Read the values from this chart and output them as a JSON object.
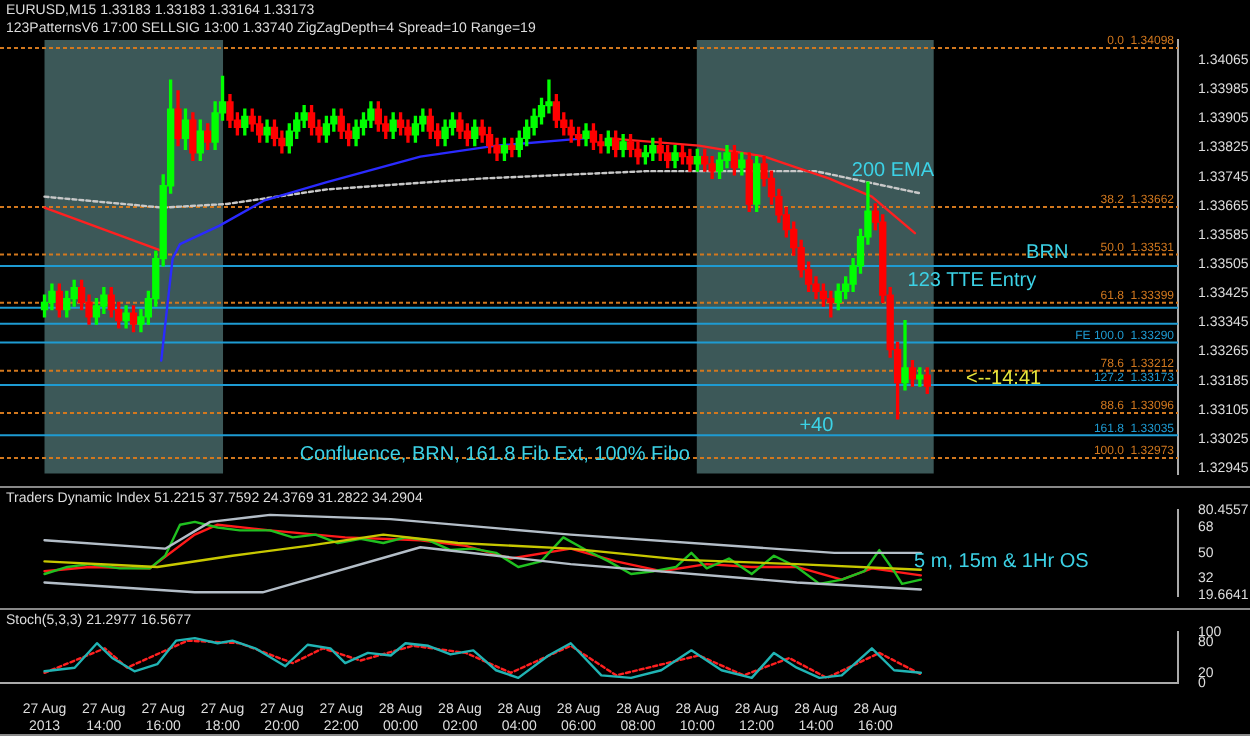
{
  "chart_data": [
    {
      "type": "candlestick",
      "title": "EURUSD,M15  1.33183 1.33183 1.33164 1.33173",
      "subtitle": "123PatternsV6  17:00  SELLSIG  13:00  1.33740  ZigZagDepth=4  Spread=10  Range=19",
      "xlim": [
        "2013-08-27T10:30",
        "2013-08-29T02:12"
      ],
      "ylim": [
        1.3293,
        1.3412
      ],
      "yticks": [
        1.32945,
        1.33025,
        1.33105,
        1.33185,
        1.33265,
        1.33345,
        1.33425,
        1.33505,
        1.33585,
        1.33665,
        1.33745,
        1.33825,
        1.33905,
        1.33985,
        1.34065
      ],
      "tick_labels": "y",
      "series": [
        {
          "color": "#00ff00",
          "x": [
            "2013-08-27T12:00",
            "2013-08-27T12:15",
            "2013-08-27T12:45",
            "2013-08-27T13:00",
            "2013-08-27T13:45",
            "2013-08-27T14:00",
            "2013-08-27T14:45",
            "2013-08-27T15:15",
            "2013-08-27T15:30",
            "2013-08-27T15:45",
            "2013-08-27T16:00",
            "2013-08-27T16:15",
            "2013-08-27T16:45",
            "2013-08-27T17:15",
            "2013-08-27T17:45",
            "2013-08-27T18:00",
            "2013-08-27T18:45",
            "2013-08-27T19:30",
            "2013-08-27T20:15",
            "2013-08-27T20:30",
            "2013-08-27T20:45",
            "2013-08-27T21:30",
            "2013-08-27T21:45",
            "2013-08-27T22:30",
            "2013-08-27T22:45",
            "2013-08-27T23:00",
            "2013-08-27T23:45",
            "2013-08-28T00:30",
            "2013-08-28T00:45",
            "2013-08-28T01:30",
            "2013-08-28T01:45",
            "2013-08-28T02:30",
            "2013-08-28T03:30",
            "2013-08-28T04:00",
            "2013-08-28T04:15",
            "2013-08-28T04:30",
            "2013-08-28T04:45",
            "2013-08-28T05:00",
            "2013-08-28T06:15",
            "2013-08-28T07:00",
            "2013-08-28T07:30",
            "2013-08-28T08:15",
            "2013-08-28T08:30",
            "2013-08-28T09:15",
            "2013-08-28T10:00",
            "2013-08-28T10:45",
            "2013-08-28T11:00",
            "2013-08-28T11:30",
            "2013-08-28T12:00",
            "2013-08-28T14:45",
            "2013-08-28T15:00",
            "2013-08-28T15:15",
            "2013-08-28T15:30",
            "2013-08-28T15:45",
            "2013-08-28T17:00",
            "2013-08-28T17:30"
          ],
          "ohlc": [
            [
              1.3338,
              1.3342,
              1.3336,
              1.334
            ],
            [
              1.334,
              1.3345,
              1.3338,
              1.3343
            ],
            [
              1.3338,
              1.3343,
              1.3336,
              1.3341
            ],
            [
              1.3341,
              1.3346,
              1.3339,
              1.3344
            ],
            [
              1.3336,
              1.3341,
              1.3334,
              1.3339
            ],
            [
              1.3339,
              1.3344,
              1.3337,
              1.3342
            ],
            [
              1.3335,
              1.3339,
              1.3333,
              1.3337
            ],
            [
              1.3334,
              1.3338,
              1.3332,
              1.3336
            ],
            [
              1.3336,
              1.3343,
              1.3334,
              1.3341
            ],
            [
              1.3341,
              1.3354,
              1.3339,
              1.3352
            ],
            [
              1.3352,
              1.3375,
              1.335,
              1.3372
            ],
            [
              1.3372,
              1.3401,
              1.337,
              1.3393
            ],
            [
              1.3385,
              1.3393,
              1.3382,
              1.339
            ],
            [
              1.3381,
              1.339,
              1.3379,
              1.3387
            ],
            [
              1.3384,
              1.3395,
              1.3382,
              1.3392
            ],
            [
              1.3392,
              1.3402,
              1.339,
              1.3395
            ],
            [
              1.3388,
              1.3393,
              1.3386,
              1.3391
            ],
            [
              1.3386,
              1.339,
              1.3384,
              1.3388
            ],
            [
              1.3383,
              1.3389,
              1.3381,
              1.3387
            ],
            [
              1.3387,
              1.3392,
              1.3385,
              1.339
            ],
            [
              1.339,
              1.3394,
              1.3388,
              1.3392
            ],
            [
              1.3386,
              1.3391,
              1.3384,
              1.3389
            ],
            [
              1.3389,
              1.3393,
              1.3387,
              1.3391
            ],
            [
              1.3385,
              1.339,
              1.3383,
              1.3388
            ],
            [
              1.3388,
              1.3392,
              1.3386,
              1.339
            ],
            [
              1.339,
              1.3395,
              1.3388,
              1.3393
            ],
            [
              1.3387,
              1.3392,
              1.3385,
              1.339
            ],
            [
              1.3386,
              1.3391,
              1.3384,
              1.3389
            ],
            [
              1.3389,
              1.3393,
              1.3387,
              1.3391
            ],
            [
              1.3385,
              1.339,
              1.3383,
              1.3388
            ],
            [
              1.3388,
              1.3392,
              1.3386,
              1.339
            ],
            [
              1.3385,
              1.339,
              1.3383,
              1.3388
            ],
            [
              1.3381,
              1.3385,
              1.3379,
              1.3383
            ],
            [
              1.3382,
              1.3387,
              1.338,
              1.3385
            ],
            [
              1.3385,
              1.339,
              1.3383,
              1.3388
            ],
            [
              1.3388,
              1.3393,
              1.3386,
              1.3391
            ],
            [
              1.3391,
              1.3396,
              1.3389,
              1.3394
            ],
            [
              1.3394,
              1.3401,
              1.3392,
              1.3395
            ],
            [
              1.3385,
              1.3389,
              1.3383,
              1.3387
            ],
            [
              1.3383,
              1.3387,
              1.3381,
              1.3385
            ],
            [
              1.3382,
              1.3386,
              1.338,
              1.3384
            ],
            [
              1.338,
              1.3383,
              1.3378,
              1.3381
            ],
            [
              1.3381,
              1.3385,
              1.3379,
              1.3383
            ],
            [
              1.3379,
              1.3383,
              1.3377,
              1.3381
            ],
            [
              1.3378,
              1.3382,
              1.3376,
              1.338
            ],
            [
              1.3376,
              1.3381,
              1.3374,
              1.3379
            ],
            [
              1.3379,
              1.3383,
              1.3377,
              1.3381
            ],
            [
              1.3377,
              1.3381,
              1.3375,
              1.3379
            ],
            [
              1.3367,
              1.338,
              1.3365,
              1.3378
            ],
            [
              1.334,
              1.3345,
              1.3338,
              1.3343
            ],
            [
              1.3343,
              1.3347,
              1.3341,
              1.3345
            ],
            [
              1.3345,
              1.3352,
              1.3343,
              1.335
            ],
            [
              1.335,
              1.336,
              1.3348,
              1.3358
            ],
            [
              1.3358,
              1.3373,
              1.3356,
              1.3365
            ],
            [
              1.3318,
              1.3335,
              1.3316,
              1.3322
            ],
            [
              1.3319,
              1.3322,
              1.3317,
              1.332
            ]
          ]
        },
        {
          "color": "#ff0000",
          "x": [
            "2013-08-27T12:30",
            "2013-08-27T13:15",
            "2013-08-27T13:30",
            "2013-08-27T14:15",
            "2013-08-27T14:30",
            "2013-08-27T15:00",
            "2013-08-27T16:30",
            "2013-08-27T17:00",
            "2013-08-27T17:30",
            "2013-08-27T18:15",
            "2013-08-27T18:30",
            "2013-08-27T19:00",
            "2013-08-27T19:15",
            "2013-08-27T19:45",
            "2013-08-27T20:00",
            "2013-08-27T21:00",
            "2013-08-27T21:15",
            "2013-08-27T22:00",
            "2013-08-27T22:15",
            "2013-08-27T23:15",
            "2013-08-27T23:30",
            "2013-08-28T00:00",
            "2013-08-28T00:15",
            "2013-08-28T01:00",
            "2013-08-28T01:15",
            "2013-08-28T02:00",
            "2013-08-28T02:15",
            "2013-08-28T02:45",
            "2013-08-28T03:00",
            "2013-08-28T03:15",
            "2013-08-28T03:45",
            "2013-08-28T05:15",
            "2013-08-28T05:30",
            "2013-08-28T05:45",
            "2013-08-28T06:00",
            "2013-08-28T06:30",
            "2013-08-28T06:45",
            "2013-08-28T07:15",
            "2013-08-28T07:45",
            "2013-08-28T08:00",
            "2013-08-28T08:45",
            "2013-08-28T09:00",
            "2013-08-28T09:30",
            "2013-08-28T09:45",
            "2013-08-28T10:15",
            "2013-08-28T10:30",
            "2013-08-28T11:15",
            "2013-08-28T11:45",
            "2013-08-28T12:15",
            "2013-08-28T12:30",
            "2013-08-28T12:45",
            "2013-08-28T13:00",
            "2013-08-28T13:15",
            "2013-08-28T13:30",
            "2013-08-28T13:45",
            "2013-08-28T14:00",
            "2013-08-28T14:15",
            "2013-08-28T14:30",
            "2013-08-28T16:00",
            "2013-08-28T16:15",
            "2013-08-28T16:30",
            "2013-08-28T16:45",
            "2013-08-28T17:15",
            "2013-08-28T17:45"
          ],
          "ohlc": [
            [
              1.3343,
              1.3345,
              1.3336,
              1.3338
            ],
            [
              1.3344,
              1.3346,
              1.3338,
              1.334
            ],
            [
              1.334,
              1.3342,
              1.3334,
              1.3336
            ],
            [
              1.3342,
              1.3344,
              1.3336,
              1.3338
            ],
            [
              1.3338,
              1.334,
              1.3333,
              1.3335
            ],
            [
              1.3337,
              1.3339,
              1.3332,
              1.3334
            ],
            [
              1.3393,
              1.3398,
              1.3383,
              1.3385
            ],
            [
              1.339,
              1.3392,
              1.3379,
              1.3381
            ],
            [
              1.3387,
              1.3389,
              1.3382,
              1.3384
            ],
            [
              1.3395,
              1.3397,
              1.3388,
              1.339
            ],
            [
              1.339,
              1.3392,
              1.3386,
              1.3388
            ],
            [
              1.3391,
              1.3393,
              1.3387,
              1.3389
            ],
            [
              1.3389,
              1.3391,
              1.3384,
              1.3386
            ],
            [
              1.3388,
              1.339,
              1.3383,
              1.3385
            ],
            [
              1.3385,
              1.3387,
              1.3381,
              1.3383
            ],
            [
              1.3392,
              1.3394,
              1.3386,
              1.3388
            ],
            [
              1.3388,
              1.339,
              1.3384,
              1.3386
            ],
            [
              1.3391,
              1.3393,
              1.3385,
              1.3387
            ],
            [
              1.3387,
              1.3389,
              1.3383,
              1.3385
            ],
            [
              1.3393,
              1.3395,
              1.3387,
              1.3389
            ],
            [
              1.3389,
              1.3391,
              1.3385,
              1.3387
            ],
            [
              1.339,
              1.3392,
              1.3386,
              1.3388
            ],
            [
              1.3388,
              1.339,
              1.3384,
              1.3386
            ],
            [
              1.3391,
              1.3393,
              1.3385,
              1.3387
            ],
            [
              1.3387,
              1.3389,
              1.3383,
              1.3385
            ],
            [
              1.339,
              1.3392,
              1.3385,
              1.3387
            ],
            [
              1.3387,
              1.3389,
              1.3383,
              1.3385
            ],
            [
              1.3388,
              1.339,
              1.3384,
              1.3386
            ],
            [
              1.3386,
              1.3388,
              1.3381,
              1.3383
            ],
            [
              1.3383,
              1.3385,
              1.3379,
              1.3381
            ],
            [
              1.3383,
              1.3385,
              1.338,
              1.3382
            ],
            [
              1.3395,
              1.3397,
              1.3388,
              1.339
            ],
            [
              1.339,
              1.3392,
              1.3386,
              1.3388
            ],
            [
              1.3388,
              1.339,
              1.3384,
              1.3386
            ],
            [
              1.3386,
              1.3388,
              1.3383,
              1.3385
            ],
            [
              1.3387,
              1.3389,
              1.3382,
              1.3384
            ],
            [
              1.3384,
              1.3386,
              1.3381,
              1.3383
            ],
            [
              1.3385,
              1.3387,
              1.338,
              1.3382
            ],
            [
              1.3384,
              1.3386,
              1.338,
              1.3382
            ],
            [
              1.3382,
              1.3384,
              1.3378,
              1.338
            ],
            [
              1.3383,
              1.3385,
              1.3379,
              1.3381
            ],
            [
              1.3381,
              1.3383,
              1.3377,
              1.3379
            ],
            [
              1.3381,
              1.3383,
              1.3378,
              1.338
            ],
            [
              1.338,
              1.3382,
              1.3376,
              1.3378
            ],
            [
              1.338,
              1.3382,
              1.3376,
              1.3378
            ],
            [
              1.3378,
              1.338,
              1.3374,
              1.3376
            ],
            [
              1.3381,
              1.3383,
              1.3375,
              1.3377
            ],
            [
              1.3379,
              1.3381,
              1.3365,
              1.3367
            ],
            [
              1.3378,
              1.338,
              1.3372,
              1.3374
            ],
            [
              1.3374,
              1.3376,
              1.3367,
              1.3369
            ],
            [
              1.3369,
              1.3371,
              1.3362,
              1.3364
            ],
            [
              1.3364,
              1.3366,
              1.3358,
              1.336
            ],
            [
              1.336,
              1.3362,
              1.3353,
              1.3355
            ],
            [
              1.3355,
              1.3357,
              1.3347,
              1.3349
            ],
            [
              1.3349,
              1.3351,
              1.3343,
              1.3345
            ],
            [
              1.3345,
              1.3347,
              1.3341,
              1.3343
            ],
            [
              1.3343,
              1.3345,
              1.3339,
              1.3341
            ],
            [
              1.3341,
              1.3343,
              1.3336,
              1.334
            ],
            [
              1.3365,
              1.3367,
              1.336,
              1.3362
            ],
            [
              1.3362,
              1.3364,
              1.334,
              1.3342
            ],
            [
              1.3342,
              1.3344,
              1.3325,
              1.3327
            ],
            [
              1.3327,
              1.3329,
              1.3308,
              1.3318
            ],
            [
              1.3322,
              1.3324,
              1.3317,
              1.3319
            ],
            [
              1.332,
              1.3322,
              1.3315,
              1.3317
            ]
          ]
        },
        {
          "type": "line",
          "color": "#2a2aff",
          "x": [
            "2013-08-27T15:56",
            "2013-08-27T16:19",
            "2013-08-27T16:34",
            "2013-08-27T17:53",
            "2013-08-27T19:25",
            "2013-08-27T21:31",
            "2013-08-28T00:40",
            "2013-08-28T03:13",
            "2013-08-28T06:11"
          ],
          "values": [
            1.3324,
            1.3352,
            1.3356,
            1.3361,
            1.3368,
            1.3373,
            1.338,
            1.3383,
            1.3385
          ]
        },
        {
          "type": "line",
          "color": "#ff2020",
          "x": [
            "2013-08-27T12:00",
            "2013-08-27T16:00"
          ],
          "values": [
            1.3366,
            1.3354
          ]
        },
        {
          "type": "line",
          "color": "#ff2020",
          "x": [
            "2013-08-28T07:01",
            "2013-08-28T10:03",
            "2013-08-28T12:16",
            "2013-08-28T13:21",
            "2013-08-28T14:26",
            "2013-08-28T15:53",
            "2013-08-28T17:20"
          ],
          "values": [
            1.3385,
            1.3383,
            1.338,
            1.3377,
            1.3374,
            1.3369,
            1.3359
          ]
        },
        {
          "type": "line",
          "color": "#c8c8c8",
          "line_style": "dotted",
          "x": [
            "2013-08-27T12:00",
            "2013-08-27T15:59",
            "2013-08-27T18:09",
            "2013-08-27T21:31",
            "2013-08-28T02:46",
            "2013-08-28T08:17",
            "2013-08-28T13:59",
            "2013-08-28T17:28"
          ],
          "values": [
            1.3369,
            1.3366,
            1.3367,
            1.3371,
            1.3374,
            1.3376,
            1.3376,
            1.337
          ]
        }
      ],
      "bands": [
        {
          "axis": "x",
          "from": "2013-08-27T12:00",
          "to": "2013-08-27T18:01",
          "color": "#3c5858"
        },
        {
          "axis": "x",
          "from": "2013-08-28T09:59",
          "to": "2013-08-28T17:58",
          "color": "#3c5858"
        }
      ],
      "ref_lines": [
        {
          "axis": "y",
          "value": 1.34098,
          "label": "0.0  1.34098",
          "color": "#d2781e",
          "line_style": "dotted"
        },
        {
          "axis": "y",
          "value": 1.33662,
          "label": "38.2  1.33662",
          "color": "#d2781e",
          "line_style": "dotted"
        },
        {
          "axis": "y",
          "value": 1.33531,
          "label": "50.0  1.33531",
          "color": "#d2781e",
          "line_style": "dotted"
        },
        {
          "axis": "y",
          "value": 1.33399,
          "label": "61.8  1.33399",
          "color": "#d2781e",
          "line_style": "dotted"
        },
        {
          "axis": "y",
          "value": 1.33212,
          "label": "78.6  1.33212",
          "color": "#d2781e",
          "line_style": "dotted"
        },
        {
          "axis": "y",
          "value": 1.33096,
          "label": "88.6  1.33096",
          "color": "#d2781e",
          "line_style": "dotted"
        },
        {
          "axis": "y",
          "value": 1.32973,
          "label": "100.0  1.32973",
          "color": "#d2781e",
          "line_style": "dotted"
        },
        {
          "axis": "y",
          "value": 1.335,
          "color": "#1e9bd2",
          "line_style": "solid"
        },
        {
          "axis": "y",
          "value": 1.33385,
          "color": "#1e9bd2",
          "line_style": "solid"
        },
        {
          "axis": "y",
          "value": 1.33341,
          "color": "#1e9bd2",
          "line_style": "solid"
        },
        {
          "axis": "y",
          "value": 1.3329,
          "label": "FE 100.0  1.33290",
          "color": "#1e9bd2",
          "line_style": "solid"
        },
        {
          "axis": "y",
          "value": 1.33173,
          "label": "127.2  1.33173",
          "color": "#1e9bd2",
          "line_style": "solid"
        },
        {
          "axis": "y",
          "value": 1.33035,
          "label": "161.8  1.33035",
          "color": "#1e9bd2",
          "line_style": "solid"
        }
      ],
      "annotations": [
        "200 EMA",
        "BRN",
        "123 TTE Entry",
        "<--14:41",
        "+40",
        "Confluence, BRN, 161.8 Fib Ext, 100% Fibo"
      ]
    },
    {
      "type": "line",
      "title": "Traders Dynamic Index 51.2215 37.7592 24.3769 31.2822 34.2904",
      "xlim": [
        "2013-08-27T10:30",
        "2013-08-29T02:12"
      ],
      "ylim": [
        19.6641,
        80.4557
      ],
      "yticks": [
        19.6641,
        32,
        50,
        68,
        80.4557
      ],
      "tick_labels": "y",
      "series": [
        {
          "color": "#b4bec8",
          "x": [
            "2013-08-27T12:00",
            "2013-08-27T16:04",
            "2013-08-27T17:35",
            "2013-08-27T19:36",
            "2013-08-27T23:40",
            "2013-08-28T05:44",
            "2013-08-28T14:37",
            "2013-08-28T17:32"
          ],
          "values": [
            59,
            53,
            72,
            77,
            74,
            63,
            50,
            50
          ]
        },
        {
          "color": "#b4bec8",
          "x": [
            "2013-08-27T12:00",
            "2013-08-27T17:04",
            "2013-08-27T19:21",
            "2013-08-28T00:40",
            "2013-08-28T05:44",
            "2013-08-28T13:21",
            "2013-08-28T17:32"
          ],
          "values": [
            29,
            22,
            22,
            54,
            42,
            29,
            24
          ]
        },
        {
          "color": "#c8c800",
          "x": [
            "2013-08-27T12:00",
            "2013-08-27T15:48",
            "2013-08-27T18:20",
            "2013-08-27T20:52",
            "2013-08-27T23:25",
            "2013-08-28T01:56",
            "2013-08-28T05:44",
            "2013-08-28T09:33",
            "2013-08-28T13:21",
            "2013-08-28T17:32"
          ],
          "values": [
            44,
            40,
            48,
            55,
            63,
            57,
            53,
            45,
            42,
            38
          ]
        },
        {
          "color": "#20c020",
          "x": [
            "2013-08-27T12:00",
            "2013-08-27T12:46",
            "2013-08-27T13:31",
            "2013-08-27T14:32",
            "2013-08-27T15:33",
            "2013-08-27T16:04",
            "2013-08-27T16:34",
            "2013-08-27T17:04",
            "2013-08-27T17:50",
            "2013-08-27T18:35",
            "2013-08-27T19:36",
            "2013-08-27T20:22",
            "2013-08-27T21:08",
            "2013-08-27T21:53",
            "2013-08-27T22:39",
            "2013-08-27T23:25",
            "2013-08-28T00:10",
            "2013-08-28T00:56",
            "2013-08-28T01:41",
            "2013-08-28T02:27",
            "2013-08-28T03:13",
            "2013-08-28T03:58",
            "2013-08-28T04:44",
            "2013-08-28T05:29",
            "2013-08-28T06:15",
            "2013-08-28T07:01",
            "2013-08-28T07:46",
            "2013-08-28T08:32",
            "2013-08-28T09:17",
            "2013-08-28T09:48",
            "2013-08-28T10:19",
            "2013-08-28T11:04",
            "2013-08-28T11:50",
            "2013-08-28T12:35",
            "2013-08-28T13:21",
            "2013-08-28T14:07",
            "2013-08-28T14:52",
            "2013-08-28T15:38",
            "2013-08-28T16:08",
            "2013-08-28T16:38",
            "2013-08-28T16:54",
            "2013-08-28T17:32"
          ],
          "values": [
            35,
            40,
            42,
            39,
            39,
            48,
            70,
            72,
            68,
            66,
            66,
            61,
            63,
            57,
            60,
            57,
            61,
            59,
            52,
            53,
            50,
            40,
            44,
            61,
            52,
            44,
            35,
            37,
            40,
            50,
            39,
            46,
            35,
            48,
            40,
            28,
            31,
            37,
            52,
            37,
            28,
            31
          ]
        },
        {
          "color": "#ff1a1a",
          "x": [
            "2013-08-27T12:00",
            "2013-08-27T13:31",
            "2013-08-27T15:33",
            "2013-08-27T17:04",
            "2013-08-27T17:50",
            "2013-08-27T19:36",
            "2013-08-27T22:08",
            "2013-08-28T00:40",
            "2013-08-28T02:12",
            "2013-08-28T03:43",
            "2013-08-28T05:44",
            "2013-08-28T07:16",
            "2013-08-28T08:47",
            "2013-08-28T10:19",
            "2013-08-28T11:50",
            "2013-08-28T13:21",
            "2013-08-28T14:52",
            "2013-08-28T15:53",
            "2013-08-28T17:32"
          ],
          "values": [
            37,
            40,
            39,
            63,
            70,
            66,
            61,
            59,
            55,
            46,
            53,
            44,
            37,
            42,
            40,
            40,
            31,
            39,
            34
          ]
        }
      ],
      "annotations": [
        "5 m, 15m & 1Hr OS"
      ]
    },
    {
      "type": "line",
      "title": "Stoch(5,3,3) 21.2977 16.5677",
      "xlim": [
        "2013-08-27T10:30",
        "2013-08-29T02:12"
      ],
      "ylim": [
        0,
        100
      ],
      "yticks": [
        0,
        20,
        80,
        100
      ],
      "xticks": [
        {
          "value": "2013-08-27T12:00",
          "label": "27 Aug 2013"
        },
        {
          "value": "2013-08-27T14:00",
          "label": "27 Aug 14:00"
        },
        {
          "value": "2013-08-27T16:00",
          "label": "27 Aug 16:00"
        },
        {
          "value": "2013-08-27T18:00",
          "label": "27 Aug 18:00"
        },
        {
          "value": "2013-08-27T20:00",
          "label": "27 Aug 20:00"
        },
        {
          "value": "2013-08-27T22:00",
          "label": "27 Aug 22:00"
        },
        {
          "value": "2013-08-28T00:00",
          "label": "28 Aug 00:00"
        },
        {
          "value": "2013-08-28T02:00",
          "label": "28 Aug 02:00"
        },
        {
          "value": "2013-08-28T04:00",
          "label": "28 Aug 04:00"
        },
        {
          "value": "2013-08-28T06:00",
          "label": "28 Aug 06:00"
        },
        {
          "value": "2013-08-28T08:00",
          "label": "28 Aug 08:00"
        },
        {
          "value": "2013-08-28T10:00",
          "label": "28 Aug 10:00"
        },
        {
          "value": "2013-08-28T12:00",
          "label": "28 Aug 12:00"
        },
        {
          "value": "2013-08-28T14:00",
          "label": "28 Aug 14:00"
        },
        {
          "value": "2013-08-28T16:00",
          "label": "28 Aug 16:00"
        }
      ],
      "series": [
        {
          "color": "#20b4b4",
          "x": [
            "2013-08-27T12:00",
            "2013-08-27T13:01",
            "2013-08-27T13:46",
            "2013-08-27T14:17",
            "2013-08-27T15:02",
            "2013-08-27T15:48",
            "2013-08-27T16:26",
            "2013-08-27T17:04",
            "2013-08-27T17:50",
            "2013-08-27T18:20",
            "2013-08-27T19:06",
            "2013-08-27T20:07",
            "2013-08-27T20:52",
            "2013-08-27T21:38",
            "2013-08-27T22:08",
            "2013-08-27T22:54",
            "2013-08-27T23:40",
            "2013-08-28T00:10",
            "2013-08-28T00:56",
            "2013-08-28T01:41",
            "2013-08-28T02:27",
            "2013-08-28T03:13",
            "2013-08-28T03:58",
            "2013-08-28T04:59",
            "2013-08-28T05:44",
            "2013-08-28T06:46",
            "2013-08-28T07:46",
            "2013-08-28T08:47",
            "2013-08-28T09:48",
            "2013-08-28T10:49",
            "2013-08-28T11:50",
            "2013-08-28T12:35",
            "2013-08-28T13:21",
            "2013-08-28T14:07",
            "2013-08-28T14:52",
            "2013-08-28T15:53",
            "2013-08-28T16:38",
            "2013-08-28T17:32"
          ],
          "values": [
            23,
            30,
            78,
            49,
            23,
            37,
            83,
            88,
            78,
            83,
            68,
            33,
            75,
            68,
            39,
            59,
            54,
            78,
            73,
            56,
            64,
            25,
            10,
            54,
            78,
            15,
            10,
            25,
            64,
            25,
            10,
            59,
            30,
            10,
            15,
            68,
            25,
            20
          ]
        },
        {
          "color": "#ff2020",
          "line_style": "dotted",
          "x": [
            "2013-08-27T12:00",
            "2013-08-27T14:02",
            "2013-08-27T14:47",
            "2013-08-27T16:49",
            "2013-08-27T18:35",
            "2013-08-27T20:22",
            "2013-08-27T21:23",
            "2013-08-27T22:39",
            "2013-08-28T00:25",
            "2013-08-28T02:12",
            "2013-08-28T03:43",
            "2013-08-28T05:44",
            "2013-08-28T07:16",
            "2013-08-28T10:03",
            "2013-08-28T11:34",
            "2013-08-28T13:06",
            "2013-08-28T14:22",
            "2013-08-28T16:08",
            "2013-08-28T17:32"
          ],
          "values": [
            20,
            68,
            30,
            83,
            78,
            39,
            68,
            44,
            73,
            59,
            20,
            73,
            15,
            54,
            15,
            49,
            10,
            59,
            17
          ]
        }
      ]
    }
  ]
}
